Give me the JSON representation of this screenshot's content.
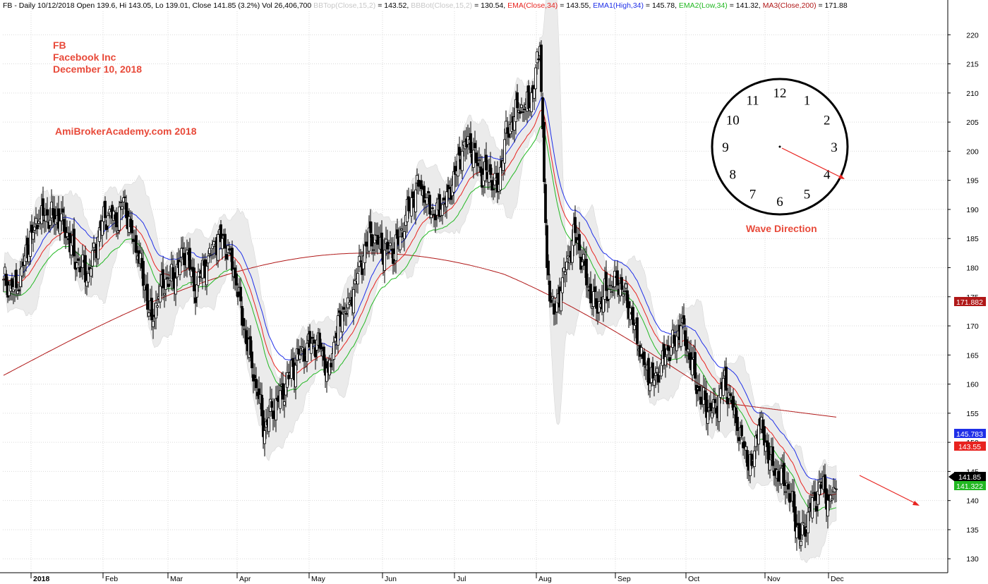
{
  "header": {
    "parts": [
      {
        "text": "FB - Daily 10/12/2018 Open 139.6, Hi 143.05, Lo 139.01, Close 141.85 (3.2%) Vol 26,406,700 ",
        "color": "#000000"
      },
      {
        "text": "BBTop(Close,15,2)",
        "color": "#c8c8c8"
      },
      {
        "text": " = 143.52, ",
        "color": "#000000"
      },
      {
        "text": "BBBot(Close,15,2)",
        "color": "#c8c8c8"
      },
      {
        "text": " = 130.54, ",
        "color": "#000000"
      },
      {
        "text": "EMA(Close,34)",
        "color": "#e8231f"
      },
      {
        "text": " = 143.55, ",
        "color": "#000000"
      },
      {
        "text": "EMA1(High,34)",
        "color": "#1f2fe8"
      },
      {
        "text": " = 145.78, ",
        "color": "#000000"
      },
      {
        "text": "EMA2(Low,34)",
        "color": "#22b822"
      },
      {
        "text": " = 141.32, ",
        "color": "#000000"
      },
      {
        "text": "MA3(Close,200)",
        "color": "#b01818"
      },
      {
        "text": " = 171.88",
        "color": "#000000"
      }
    ]
  },
  "annotations": {
    "symbol": "FB",
    "company": "Facebook Inc",
    "date": "December 10, 2018",
    "site": "AmiBrokerAcademy.com  2018",
    "wave_label": "Wave Direction",
    "clock_numbers": [
      "12",
      "1",
      "2",
      "3",
      "4",
      "5",
      "6",
      "7",
      "8",
      "9",
      "10",
      "11"
    ]
  },
  "chart_data": {
    "type": "candlestick",
    "title": "FB - Daily 10/12/2018",
    "ylim": [
      126,
      222
    ],
    "yticks": [
      130,
      135,
      140,
      145,
      150,
      155,
      160,
      165,
      170,
      175,
      180,
      185,
      190,
      195,
      200,
      205,
      210,
      215,
      220
    ],
    "x_labels": [
      "2018",
      "Feb",
      "Mar",
      "Apr",
      "May",
      "Jun",
      "Jul",
      "Aug",
      "Sep",
      "Oct",
      "Nov",
      "Dec"
    ],
    "last_bar": {
      "date": "10/12/2018",
      "open": 139.6,
      "high": 143.05,
      "low": 139.01,
      "close": 141.85,
      "change_pct": 3.2,
      "volume": 26406700
    },
    "price_labels": [
      {
        "text": "171.882",
        "value": 171.882,
        "color": "#b01818"
      },
      {
        "text": "145.783",
        "value": 145.783,
        "color": "#1f2fe8"
      },
      {
        "text": "143.55",
        "value": 143.55,
        "color": "#e8231f"
      },
      {
        "text": "141.85",
        "value": 141.85,
        "color": "#000000"
      },
      {
        "text": "141.322",
        "value": 141.322,
        "color": "#22b822"
      }
    ],
    "colors": {
      "ema": "#e8231f",
      "ema_high": "#1f2fe8",
      "ema_low": "#22b822",
      "ma200": "#b01818",
      "bollinger": "#ebebeb",
      "grid": "#d9d9d9",
      "arrow": "#e8231f"
    },
    "grid": true,
    "close_path_approx": [
      [
        0,
        178
      ],
      [
        5,
        177
      ],
      [
        10,
        176
      ],
      [
        15,
        182
      ],
      [
        20,
        186
      ],
      [
        25,
        188
      ],
      [
        30,
        189
      ],
      [
        35,
        189
      ],
      [
        40,
        188
      ],
      [
        45,
        186
      ],
      [
        50,
        182
      ],
      [
        55,
        180
      ],
      [
        60,
        179
      ],
      [
        65,
        183
      ],
      [
        70,
        188
      ],
      [
        75,
        190
      ],
      [
        80,
        187
      ],
      [
        85,
        192
      ],
      [
        90,
        187
      ],
      [
        95,
        182
      ],
      [
        100,
        177
      ],
      [
        105,
        171
      ],
      [
        110,
        175
      ],
      [
        115,
        178
      ],
      [
        120,
        178
      ],
      [
        125,
        181
      ],
      [
        130,
        183
      ],
      [
        135,
        176
      ],
      [
        140,
        179
      ],
      [
        145,
        182
      ],
      [
        150,
        184
      ],
      [
        155,
        185
      ],
      [
        160,
        183
      ],
      [
        165,
        177
      ],
      [
        170,
        170
      ],
      [
        175,
        165
      ],
      [
        180,
        158
      ],
      [
        185,
        152
      ],
      [
        190,
        156
      ],
      [
        195,
        157
      ],
      [
        200,
        160
      ],
      [
        205,
        163
      ],
      [
        210,
        165
      ],
      [
        215,
        167
      ],
      [
        220,
        167
      ],
      [
        225,
        166
      ],
      [
        230,
        162
      ],
      [
        235,
        168
      ],
      [
        240,
        172
      ],
      [
        245,
        174
      ],
      [
        250,
        178
      ],
      [
        255,
        182
      ],
      [
        260,
        186
      ],
      [
        265,
        184
      ],
      [
        270,
        183
      ],
      [
        275,
        183
      ],
      [
        280,
        184
      ],
      [
        285,
        189
      ],
      [
        290,
        192
      ],
      [
        295,
        194
      ],
      [
        300,
        192
      ],
      [
        305,
        189
      ],
      [
        310,
        190
      ],
      [
        315,
        193
      ],
      [
        320,
        196
      ],
      [
        325,
        200
      ],
      [
        330,
        202
      ],
      [
        335,
        198
      ],
      [
        340,
        196
      ],
      [
        345,
        196
      ],
      [
        350,
        193
      ],
      [
        355,
        202
      ],
      [
        360,
        205
      ],
      [
        365,
        207
      ],
      [
        370,
        208
      ],
      [
        375,
        210
      ],
      [
        380,
        218
      ],
      [
        385,
        180
      ],
      [
        390,
        172
      ],
      [
        395,
        176
      ],
      [
        400,
        182
      ],
      [
        405,
        186
      ],
      [
        410,
        181
      ],
      [
        415,
        176
      ],
      [
        420,
        173
      ],
      [
        425,
        175
      ],
      [
        430,
        177
      ],
      [
        435,
        177
      ],
      [
        440,
        176
      ],
      [
        445,
        172
      ],
      [
        450,
        166
      ],
      [
        455,
        163
      ],
      [
        460,
        161
      ],
      [
        465,
        162
      ],
      [
        470,
        166
      ],
      [
        475,
        167
      ],
      [
        480,
        170
      ],
      [
        485,
        166
      ],
      [
        490,
        161
      ],
      [
        495,
        157
      ],
      [
        500,
        156
      ],
      [
        505,
        155
      ],
      [
        510,
        161
      ],
      [
        515,
        158
      ],
      [
        520,
        152
      ],
      [
        525,
        149
      ],
      [
        530,
        146
      ],
      [
        535,
        153
      ],
      [
        540,
        150
      ],
      [
        545,
        146
      ],
      [
        550,
        144
      ],
      [
        555,
        143
      ],
      [
        560,
        138
      ],
      [
        565,
        133
      ],
      [
        570,
        138
      ],
      [
        575,
        140
      ],
      [
        580,
        143
      ],
      [
        585,
        140
      ],
      [
        590,
        142
      ]
    ]
  }
}
